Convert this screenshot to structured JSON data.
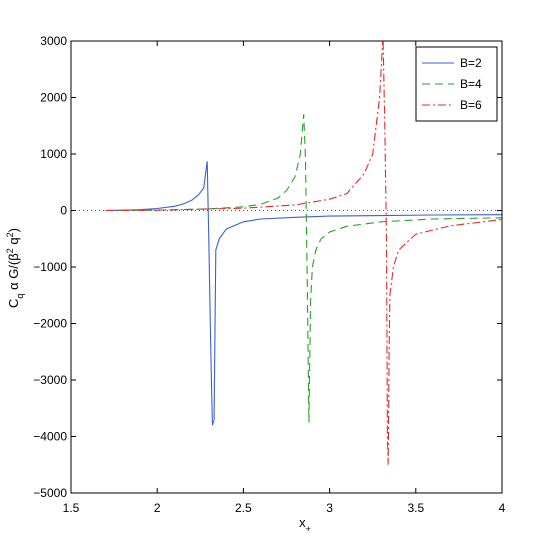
{
  "chart_data": {
    "type": "line",
    "title": "",
    "xlabel": "x",
    "xlabel_sub": "+",
    "ylabel": "C",
    "ylabel_parts": {
      "c": "C",
      "c_sub": "q",
      "mid": " α G/(β",
      "sup1": "2",
      "mid2": " q",
      "sup2": "2",
      "end": ")"
    },
    "xlim": [
      1.5,
      4
    ],
    "ylim": [
      -5000,
      3000
    ],
    "xticks": [
      1.5,
      2,
      2.5,
      3,
      3.5,
      4
    ],
    "xtick_labels": [
      "1.5",
      "2",
      "2.5",
      "3",
      "3.5",
      "4"
    ],
    "yticks": [
      -5000,
      -4000,
      -3000,
      -2000,
      -1000,
      0,
      1000,
      2000,
      3000
    ],
    "ytick_labels": [
      "−5000",
      "−4000",
      "−3000",
      "−2000",
      "−1000",
      "0",
      "1000",
      "2000",
      "3000"
    ],
    "grid": false,
    "legend_position": "top-right",
    "zero_line": {
      "style": "dotted",
      "color": "#0000ff"
    },
    "series": [
      {
        "name": "B=2",
        "color": "#3a5fd9",
        "dash": "solid",
        "x": [
          1.7,
          1.8,
          1.9,
          2.0,
          2.1,
          2.15,
          2.2,
          2.24,
          2.27,
          2.29,
          2.3,
          2.31,
          2.32,
          2.33,
          2.34,
          2.36,
          2.4,
          2.5,
          2.6,
          2.8,
          3.0,
          3.3,
          3.6,
          4.0
        ],
        "y": [
          0,
          5,
          15,
          35,
          75,
          115,
          180,
          280,
          400,
          870,
          -600,
          -2300,
          -3800,
          -3700,
          -700,
          -500,
          -330,
          -200,
          -150,
          -120,
          -100,
          -90,
          -80,
          -75
        ]
      },
      {
        "name": "B=4",
        "color": "#28a028",
        "dash": "8,5",
        "x": [
          1.7,
          1.9,
          2.1,
          2.3,
          2.5,
          2.6,
          2.7,
          2.75,
          2.8,
          2.83,
          2.85,
          2.86,
          2.87,
          2.88,
          2.89,
          2.9,
          2.92,
          2.95,
          3.0,
          3.1,
          3.3,
          3.6,
          4.0
        ],
        "y": [
          0,
          5,
          12,
          30,
          65,
          110,
          220,
          350,
          600,
          1000,
          1700,
          900,
          -1200,
          -3750,
          -1600,
          -1000,
          -700,
          -500,
          -380,
          -280,
          -200,
          -150,
          -130
        ]
      },
      {
        "name": "B=6",
        "color": "#e82a2a",
        "dash": "8,3,2,3",
        "x": [
          1.7,
          2.0,
          2.5,
          2.8,
          3.0,
          3.1,
          3.2,
          3.25,
          3.29,
          3.31,
          3.32,
          3.33,
          3.335,
          3.34,
          3.345,
          3.35,
          3.37,
          3.4,
          3.5,
          3.7,
          4.0
        ],
        "y": [
          0,
          5,
          40,
          100,
          200,
          300,
          650,
          1000,
          2000,
          3100,
          1500,
          -500,
          -4000,
          -4500,
          -2500,
          -1500,
          -1000,
          -700,
          -420,
          -270,
          -160
        ]
      }
    ]
  }
}
